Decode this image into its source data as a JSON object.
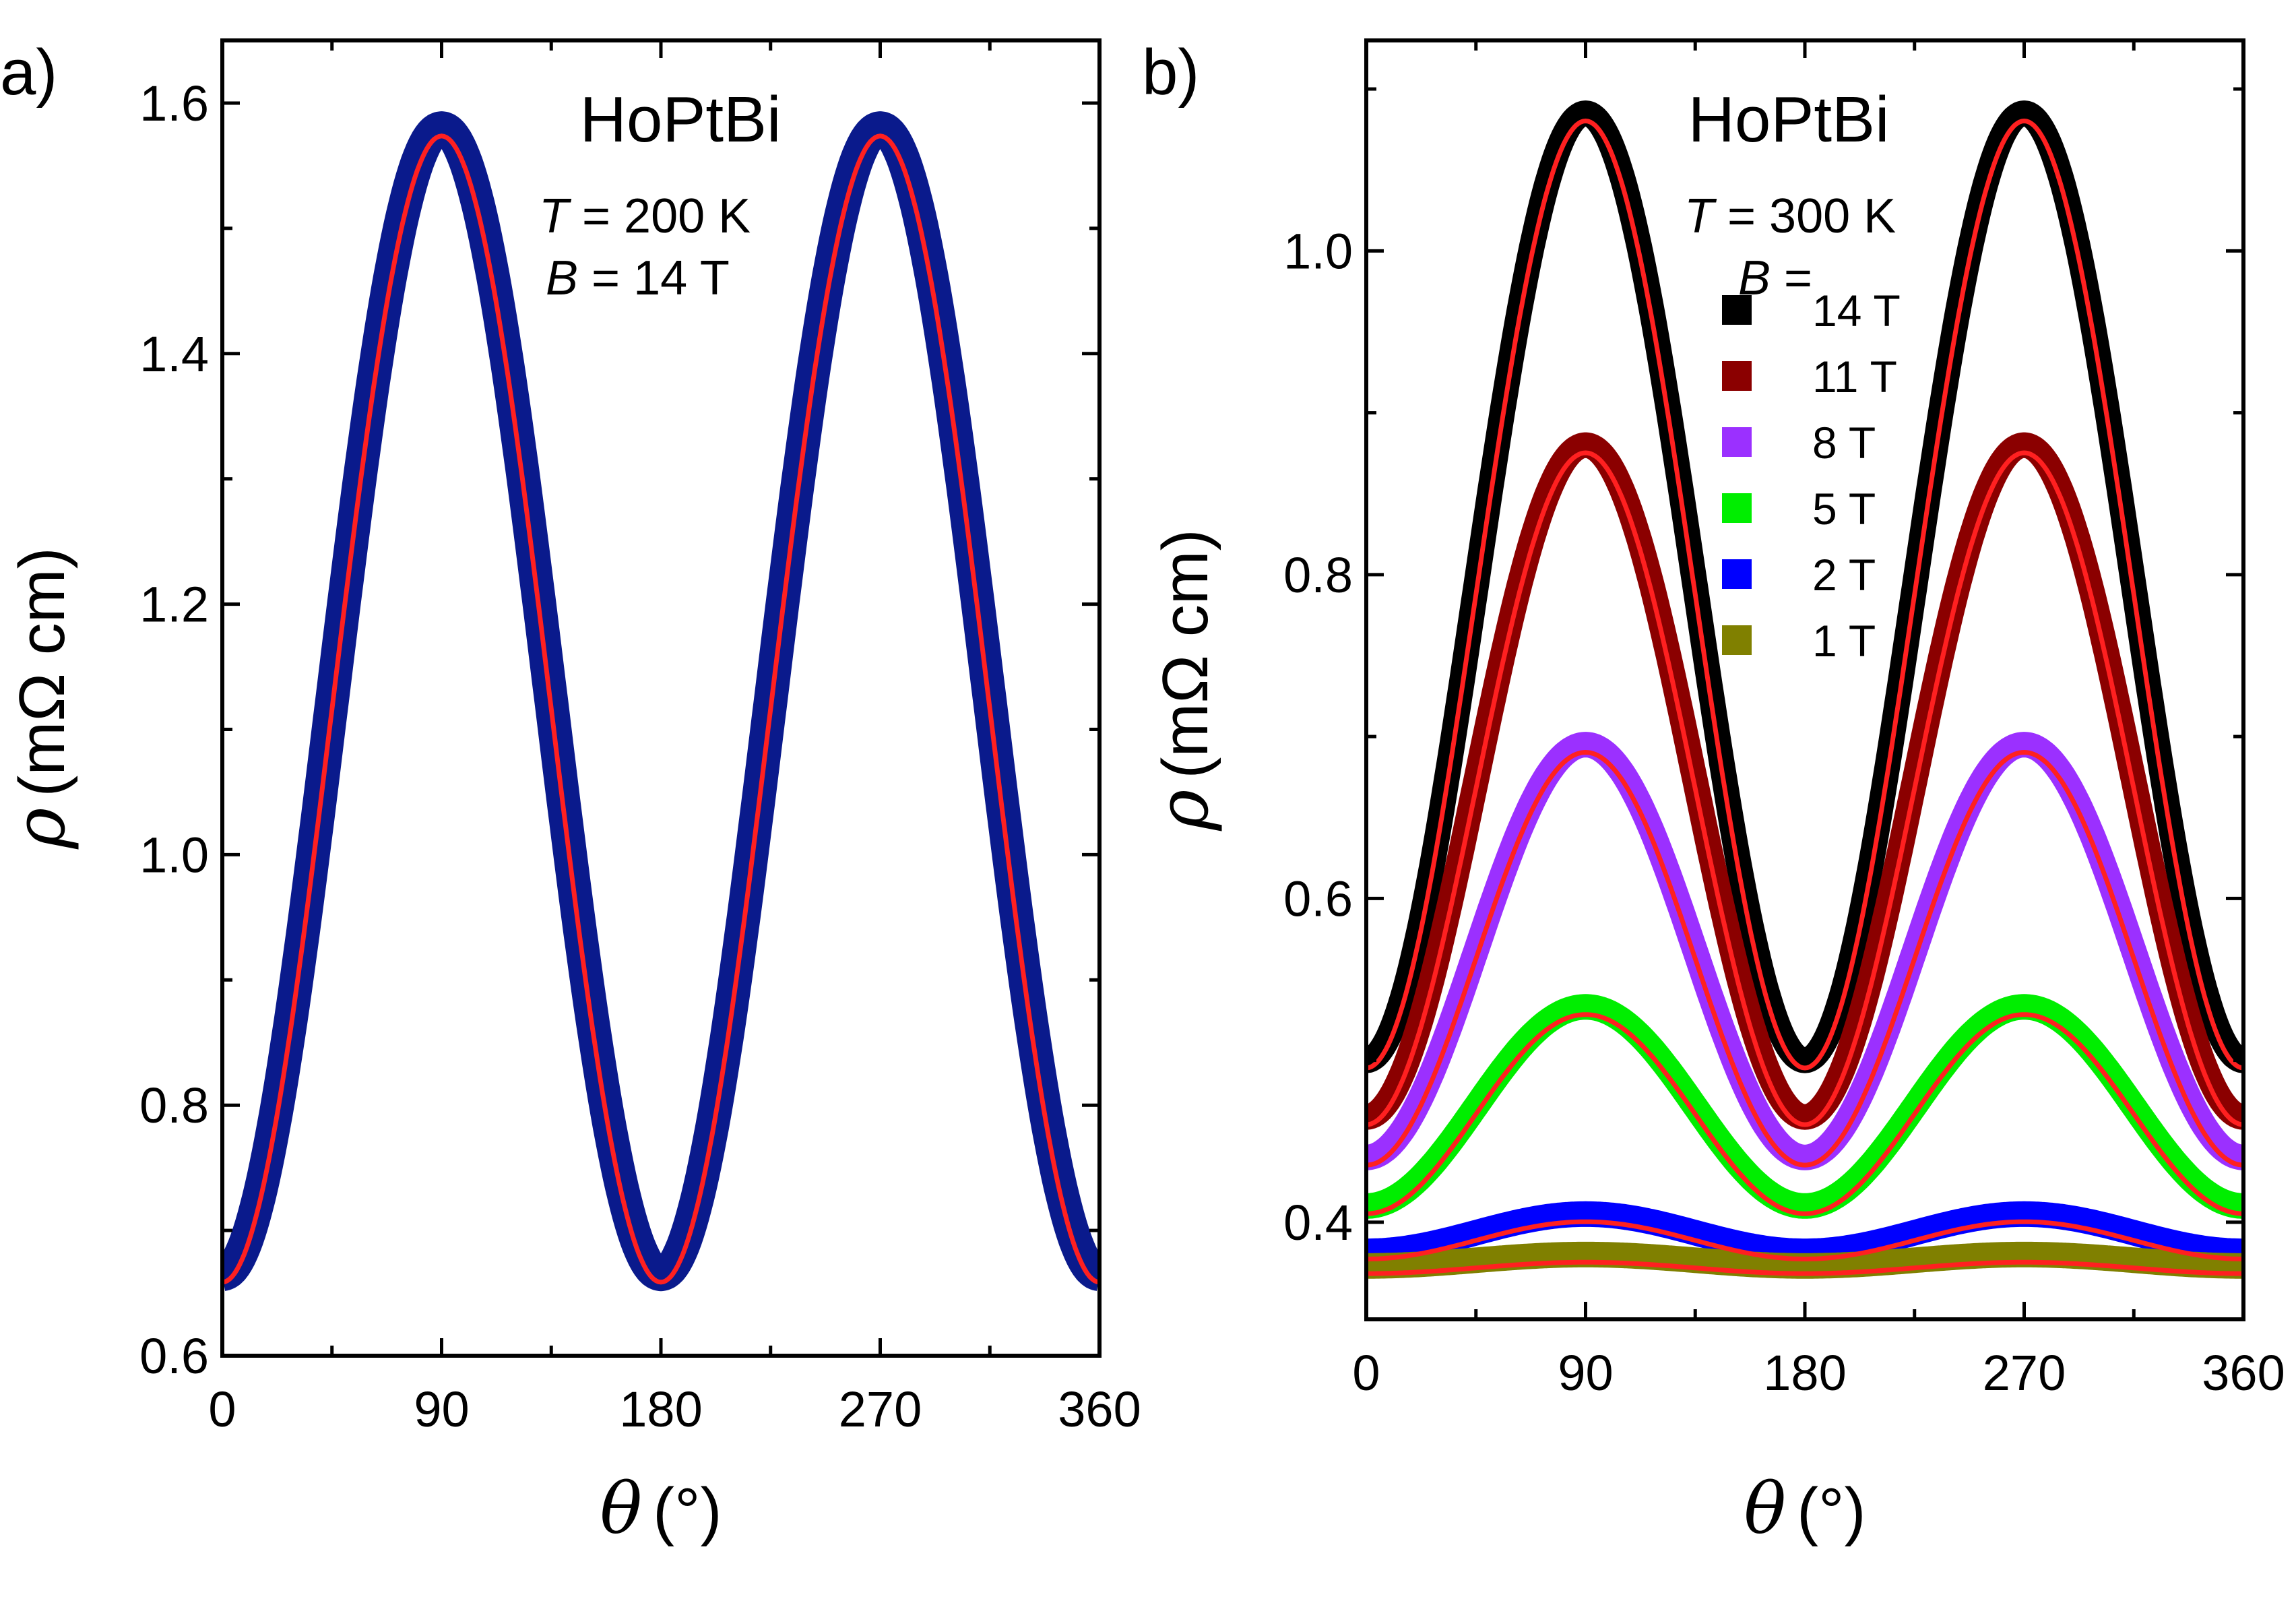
{
  "chart_data": [
    {
      "type": "scatter",
      "panel_label": "a)",
      "title": "HoPtBi",
      "annotations": [
        {
          "var": "T",
          "text": " = 200 K"
        },
        {
          "var": "B",
          "text": " = 14 T"
        }
      ],
      "xlabel": {
        "symbol": "θ",
        "unit": "(°)"
      },
      "ylabel": {
        "symbol": "ρ",
        "unit": "(mΩ cm)"
      },
      "xlim": [
        0,
        360
      ],
      "ylim": [
        0.6,
        1.65
      ],
      "xticks": [
        "0",
        "90",
        "180",
        "270",
        "360"
      ],
      "yticks": [
        "0.6",
        "0.8",
        "1.0",
        "1.2",
        "1.4",
        "1.6"
      ],
      "fit_color": "#ff2020",
      "series": [
        {
          "name": "14 T",
          "color": "#0a1a8c",
          "min": 0.665,
          "max": 1.58
        }
      ]
    },
    {
      "type": "scatter",
      "panel_label": "b)",
      "title": "HoPtBi",
      "annotations": [
        {
          "var": "T",
          "text": " = 300 K"
        },
        {
          "var": "B",
          "text": " ="
        }
      ],
      "xlabel": {
        "symbol": "θ",
        "unit": "(°)"
      },
      "ylabel": {
        "symbol": "ρ",
        "unit": "(mΩ cm)"
      },
      "xlim": [
        0,
        360
      ],
      "ylim": [
        0.34,
        1.13
      ],
      "xticks": [
        "0",
        "90",
        "180",
        "270",
        "360"
      ],
      "yticks": [
        "0.4",
        "0.6",
        "0.8",
        "1.0"
      ],
      "fit_color": "#ff2020",
      "legend_position": "upper-center",
      "series": [
        {
          "name": "14 T",
          "color": "#000000",
          "min": 0.5,
          "max": 1.085
        },
        {
          "name": "11 T",
          "color": "#8b0000",
          "min": 0.465,
          "max": 0.88
        },
        {
          "name": "8 T",
          "color": "#9b30ff",
          "min": 0.44,
          "max": 0.695
        },
        {
          "name": "5 T",
          "color": "#00ee00",
          "min": 0.41,
          "max": 0.533
        },
        {
          "name": "2 T",
          "color": "#0000ff",
          "min": 0.382,
          "max": 0.405
        },
        {
          "name": "1 T",
          "color": "#808000",
          "min": 0.373,
          "max": 0.38
        }
      ]
    }
  ]
}
